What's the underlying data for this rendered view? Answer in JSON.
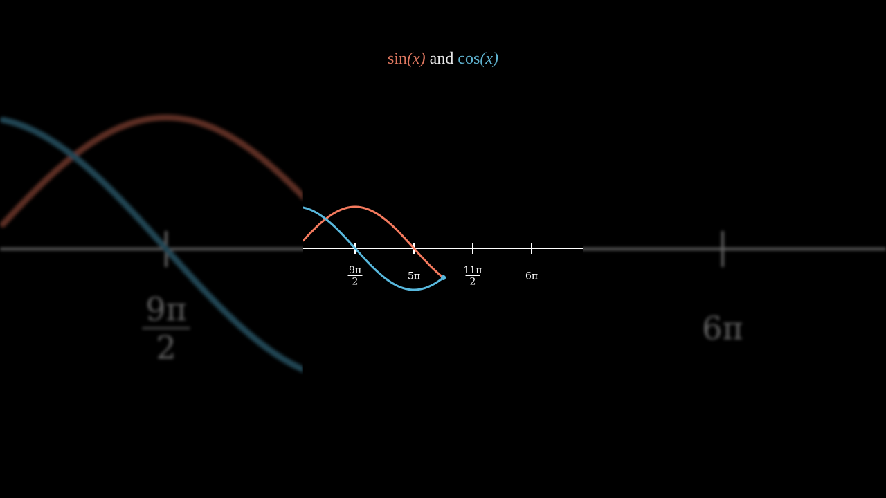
{
  "title": {
    "sin_label": "sin",
    "cos_label": "cos",
    "arg": "(x)",
    "joiner": "and"
  },
  "colors": {
    "background": "#000000",
    "sin": "#f47a5e",
    "cos": "#58b8dd",
    "axis": "#ffffff"
  },
  "chart_data": {
    "type": "line",
    "title": "sin(x) and cos(x)",
    "x_unit": "radians",
    "xlim_visible_pi": [
      4.06,
      6.4
    ],
    "ylim": [
      -1,
      1
    ],
    "grid": false,
    "series": [
      {
        "name": "sin(x)",
        "function": "sin",
        "x_range_pi": [
          4.06,
          5.25
        ],
        "color": "#f47a5e"
      },
      {
        "name": "cos(x)",
        "function": "cos",
        "x_range_pi": [
          4.06,
          5.25
        ],
        "color": "#58b8dd"
      }
    ],
    "endpoint_marker": {
      "x_pi": 5.25,
      "y": -0.707
    },
    "ticks": [
      {
        "value_pi": 4.5,
        "num": "9π",
        "den": "2"
      },
      {
        "value_pi": 5,
        "num": "5π",
        "den": ""
      },
      {
        "value_pi": 5.5,
        "num": "11π",
        "den": "2"
      },
      {
        "value_pi": 6,
        "num": "6π",
        "den": ""
      }
    ],
    "background_zoomed_copy": true
  }
}
